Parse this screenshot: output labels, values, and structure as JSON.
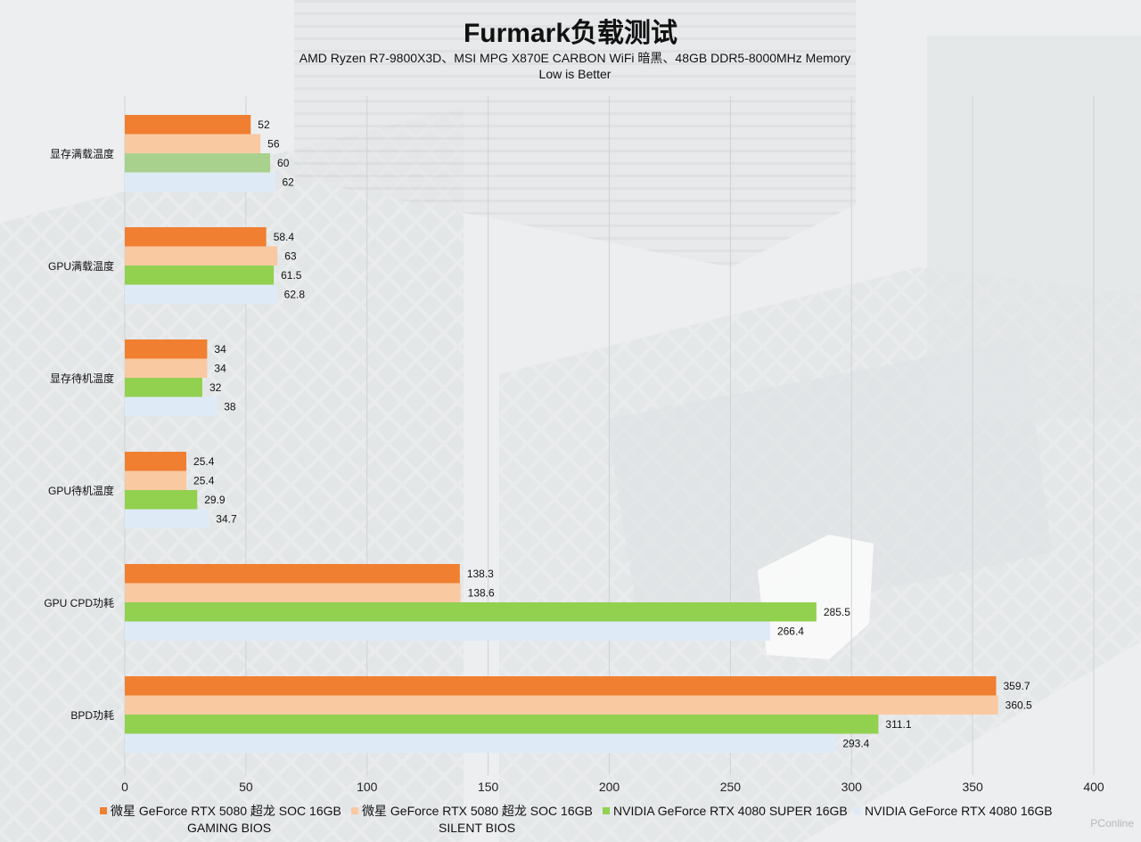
{
  "chart_data": {
    "type": "bar",
    "orientation": "horizontal",
    "title": "Furmark负载测试",
    "subtitle_lines": [
      "AMD Ryzen R7-9800X3D、MSI MPG X870E CARBON WiFi 暗黑、48GB DDR5-8000MHz Memory",
      "Low is Better"
    ],
    "categories": [
      "显存满载温度",
      "GPU满载温度",
      "显存待机温度",
      "GPU待机温度",
      "GPU CPD功耗",
      "BPD功耗"
    ],
    "series": [
      {
        "name": "微星 GeForce RTX 5080 超龙 SOC 16GB",
        "name_line2": "GAMING BIOS",
        "color": "#f07f31",
        "values": [
          52,
          58.4,
          34,
          25.4,
          138.3,
          359.7
        ]
      },
      {
        "name": "微星 GeForce RTX 5080 超龙 SOC 16GB",
        "name_line2": "SILENT BIOS",
        "color": "#f9c9a2",
        "values": [
          56,
          63,
          34,
          25.4,
          138.6,
          360.5
        ]
      },
      {
        "name": "NVIDIA GeForce RTX 4080 SUPER 16GB",
        "color": "#92d050",
        "color_first_bar": "#a9d18e",
        "values": [
          60,
          61.5,
          32,
          29.9,
          285.5,
          311.1
        ]
      },
      {
        "name": "NVIDIA GeForce RTX 4080 16GB",
        "color": "#deebf7",
        "values": [
          62,
          62.8,
          38,
          34.7,
          266.4,
          293.4
        ]
      }
    ],
    "value_labels": [
      [
        "52",
        "58.4",
        "34",
        "25.4",
        "138.3",
        "359.7"
      ],
      [
        "56",
        "63",
        "34",
        "25.4",
        "138.6",
        "360.5"
      ],
      [
        "60",
        "61.5",
        "32",
        "29.9",
        "285.5",
        "311.1"
      ],
      [
        "62",
        "62.8",
        "38",
        "34.7",
        "266.4",
        "293.4"
      ]
    ],
    "xlim": [
      0,
      400
    ],
    "xticks": [
      "0",
      "50",
      "100",
      "150",
      "200",
      "250",
      "300",
      "350",
      "400"
    ],
    "grid": true,
    "legend_position": "bottom"
  },
  "watermark": "PConline"
}
